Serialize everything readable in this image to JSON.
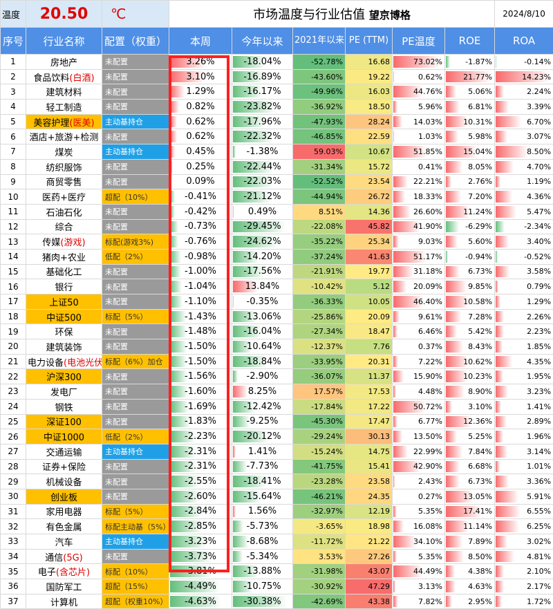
{
  "header": {
    "temp_label": "温度",
    "temp_value": "20.50",
    "temp_unit": "℃",
    "title": "市场温度与行业估值",
    "brand": "望京博格",
    "date": "2024/8/10"
  },
  "columns": [
    "序号",
    "行业名称",
    "配置（权重）",
    "本周",
    "今年以来",
    "2021年以来",
    "PE (TTM)",
    "PE温度",
    "ROE",
    "ROA"
  ],
  "rows": [
    {
      "idx": "1",
      "name": "房地产",
      "alloc": "未配置",
      "week": "3.26%",
      "ytd": "-18.04%",
      "since2021": "-52.78%",
      "pe": "16.68",
      "pe_temp": "73.02%",
      "roe": "-1.87%",
      "roa": "-0.14%"
    },
    {
      "idx": "2",
      "name": "食品饮料",
      "name_red": "(白酒)",
      "alloc": "未配置",
      "week": "3.10%",
      "ytd": "-16.89%",
      "since2021": "-43.60%",
      "pe": "19.22",
      "pe_temp": "0.62%",
      "roe": "21.77%",
      "roa": "14.23%"
    },
    {
      "idx": "3",
      "name": "建筑材料",
      "alloc": "未配置",
      "week": "1.29%",
      "ytd": "-16.17%",
      "since2021": "-49.96%",
      "pe": "16.03",
      "pe_temp": "44.76%",
      "roe": "5.06%",
      "roa": "2.24%"
    },
    {
      "idx": "4",
      "name": "轻工制造",
      "alloc": "未配置",
      "week": "0.82%",
      "ytd": "-23.82%",
      "since2021": "-36.92%",
      "pe": "18.50",
      "pe_temp": "5.96%",
      "roe": "6.81%",
      "roa": "3.39%"
    },
    {
      "idx": "5",
      "name": "美容护理",
      "name_red": "(医美)",
      "alloc": "主动基持仓",
      "week": "0.62%",
      "ytd": "-17.96%",
      "since2021": "-47.93%",
      "pe": "28.24",
      "pe_temp": "14.03%",
      "roe": "10.31%",
      "roa": "6.70%"
    },
    {
      "idx": "6",
      "name": "酒店+旅游+检测",
      "alloc": "未配置",
      "week": "0.62%",
      "ytd": "-22.32%",
      "since2021": "-46.85%",
      "pe": "22.59",
      "pe_temp": "1.03%",
      "roe": "5.98%",
      "roa": "3.07%"
    },
    {
      "idx": "7",
      "name": "煤炭",
      "alloc": "主动基持仓",
      "week": "0.45%",
      "ytd": "-1.38%",
      "since2021": "59.03%",
      "pe": "10.67",
      "pe_temp": "51.85%",
      "roe": "15.04%",
      "roa": "8.50%"
    },
    {
      "idx": "8",
      "name": "纺织服饰",
      "alloc": "未配置",
      "week": "0.25%",
      "ytd": "-22.44%",
      "since2021": "-31.34%",
      "pe": "15.72",
      "pe_temp": "0.41%",
      "roe": "8.05%",
      "roa": "4.70%"
    },
    {
      "idx": "9",
      "name": "商贸零售",
      "alloc": "未配置",
      "week": "0.09%",
      "ytd": "-22.03%",
      "since2021": "-52.52%",
      "pe": "23.54",
      "pe_temp": "22.21%",
      "roe": "2.76%",
      "roa": "1.19%"
    },
    {
      "idx": "10",
      "name": "医药+医疗",
      "alloc": "超配（10%）",
      "week": "-0.41%",
      "ytd": "-21.12%",
      "since2021": "-44.94%",
      "pe": "26.72",
      "pe_temp": "18.33%",
      "roe": "7.20%",
      "roa": "4.36%"
    },
    {
      "idx": "11",
      "name": "石油石化",
      "alloc": "未配置",
      "week": "-0.42%",
      "ytd": "0.49%",
      "since2021": "8.51%",
      "pe": "14.36",
      "pe_temp": "26.60%",
      "roe": "11.24%",
      "roa": "5.47%"
    },
    {
      "idx": "12",
      "name": "综合",
      "alloc": "未配置",
      "week": "-0.73%",
      "ytd": "-29.45%",
      "since2021": "-22.08%",
      "pe": "45.82",
      "pe_temp": "41.90%",
      "roe": "-6.29%",
      "roa": "-2.34%"
    },
    {
      "idx": "13",
      "name": "传媒",
      "name_red": "(游戏)",
      "alloc": "标配(游戏3%)",
      "week": "-0.76%",
      "ytd": "-24.62%",
      "since2021": "-35.22%",
      "pe": "25.34",
      "pe_temp": "9.03%",
      "roe": "5.60%",
      "roa": "3.40%"
    },
    {
      "idx": "14",
      "name": "猪肉+农业",
      "alloc": "低配（2%）",
      "week": "-0.98%",
      "ytd": "-14.20%",
      "since2021": "-37.24%",
      "pe": "41.63",
      "pe_temp": "51.17%",
      "roe": "-0.94%",
      "roa": "-0.52%"
    },
    {
      "idx": "15",
      "name": "基础化工",
      "alloc": "未配置",
      "week": "-1.00%",
      "ytd": "-17.56%",
      "since2021": "-21.91%",
      "pe": "19.77",
      "pe_temp": "31.18%",
      "roe": "6.73%",
      "roa": "3.58%"
    },
    {
      "idx": "16",
      "name": "银行",
      "alloc": "未配置",
      "week": "-1.04%",
      "ytd": "13.84%",
      "since2021": "-10.42%",
      "pe": "5.12",
      "pe_temp": "20.09%",
      "roe": "9.85%",
      "roa": "0.79%"
    },
    {
      "idx": "17",
      "name": "上证50",
      "alloc": "未配置",
      "week": "-1.10%",
      "ytd": "-0.35%",
      "since2021": "-36.33%",
      "pe": "10.05",
      "pe_temp": "46.40%",
      "roe": "10.58%",
      "roa": "1.29%"
    },
    {
      "idx": "18",
      "name": "中证500",
      "alloc": "标配（5%）",
      "week": "-1.43%",
      "ytd": "-13.06%",
      "since2021": "-25.86%",
      "pe": "20.09",
      "pe_temp": "9.61%",
      "roe": "7.28%",
      "roa": "2.26%"
    },
    {
      "idx": "19",
      "name": "环保",
      "alloc": "未配置",
      "week": "-1.48%",
      "ytd": "-16.04%",
      "since2021": "-27.34%",
      "pe": "18.47",
      "pe_temp": "6.46%",
      "roe": "5.42%",
      "roa": "2.23%"
    },
    {
      "idx": "20",
      "name": "建筑装饰",
      "alloc": "未配置",
      "week": "-1.50%",
      "ytd": "-10.64%",
      "since2021": "-12.37%",
      "pe": "7.76",
      "pe_temp": "0.37%",
      "roe": "8.43%",
      "roa": "1.85%"
    },
    {
      "idx": "21",
      "name": "电力设备",
      "name_red": "(电池光伏)",
      "alloc": "标配（6%）加仓",
      "week": "-1.50%",
      "ytd": "-18.84%",
      "since2021": "-33.95%",
      "pe": "20.31",
      "pe_temp": "7.22%",
      "roe": "10.62%",
      "roa": "4.35%"
    },
    {
      "idx": "22",
      "name": "沪深300",
      "alloc": "未配置",
      "week": "-1.56%",
      "ytd": "-2.90%",
      "since2021": "-36.07%",
      "pe": "11.37",
      "pe_temp": "15.90%",
      "roe": "10.23%",
      "roa": "1.95%"
    },
    {
      "idx": "23",
      "name": "发电厂",
      "alloc": "未配置",
      "week": "-1.60%",
      "ytd": "8.25%",
      "since2021": "17.57%",
      "pe": "17.53",
      "pe_temp": "4.48%",
      "roe": "8.90%",
      "roa": "3.23%"
    },
    {
      "idx": "24",
      "name": "钢铁",
      "alloc": "未配置",
      "week": "-1.69%",
      "ytd": "-12.42%",
      "since2021": "-17.84%",
      "pe": "17.22",
      "pe_temp": "50.72%",
      "roe": "3.10%",
      "roa": "1.41%"
    },
    {
      "idx": "25",
      "name": "深证100",
      "alloc": "未配置",
      "week": "-1.83%",
      "ytd": "-9.25%",
      "since2021": "-45.30%",
      "pe": "17.47",
      "pe_temp": "6.77%",
      "roe": "12.36%",
      "roa": "2.89%"
    },
    {
      "idx": "26",
      "name": "中证1000",
      "alloc": "低配（2%）",
      "week": "-2.23%",
      "ytd": "-20.12%",
      "since2021": "-29.24%",
      "pe": "30.13",
      "pe_temp": "13.50%",
      "roe": "5.25%",
      "roa": "1.96%"
    },
    {
      "idx": "27",
      "name": "交通运输",
      "alloc": "主动基持仓",
      "week": "-2.31%",
      "ytd": "1.41%",
      "since2021": "-15.24%",
      "pe": "14.75",
      "pe_temp": "22.99%",
      "roe": "7.84%",
      "roa": "3.14%"
    },
    {
      "idx": "28",
      "name": "证券+保险",
      "alloc": "未配置",
      "week": "-2.31%",
      "ytd": "-7.73%",
      "since2021": "-41.75%",
      "pe": "15.41",
      "pe_temp": "42.90%",
      "roe": "6.68%",
      "roa": "1.01%"
    },
    {
      "idx": "29",
      "name": "机械设备",
      "alloc": "未配置",
      "week": "-2.55%",
      "ytd": "-18.41%",
      "since2021": "-23.28%",
      "pe": "23.58",
      "pe_temp": "2.43%",
      "roe": "6.73%",
      "roa": "3.36%"
    },
    {
      "idx": "30",
      "name": "创业板",
      "alloc": "未配置",
      "week": "-2.60%",
      "ytd": "-15.64%",
      "since2021": "-46.21%",
      "pe": "24.35",
      "pe_temp": "0.27%",
      "roe": "13.05%",
      "roa": "5.91%"
    },
    {
      "idx": "31",
      "name": "家用电器",
      "alloc": "标配（5%）",
      "week": "-2.84%",
      "ytd": "1.56%",
      "since2021": "-32.97%",
      "pe": "12.19",
      "pe_temp": "5.35%",
      "roe": "17.41%",
      "roa": "6.55%"
    },
    {
      "idx": "32",
      "name": "有色金属",
      "alloc": "标配主动基（5%）",
      "week": "-2.85%",
      "ytd": "-5.73%",
      "since2021": "-3.65%",
      "pe": "18.98",
      "pe_temp": "16.08%",
      "roe": "11.14%",
      "roa": "6.25%"
    },
    {
      "idx": "33",
      "name": "汽车",
      "alloc": "主动基持仓",
      "week": "-3.23%",
      "ytd": "-8.68%",
      "since2021": "-11.72%",
      "pe": "21.22",
      "pe_temp": "34.10%",
      "roe": "7.89%",
      "roa": "3.02%"
    },
    {
      "idx": "34",
      "name": "通信",
      "name_red": "(5G)",
      "alloc": "未配置",
      "week": "-3.73%",
      "ytd": "-5.34%",
      "since2021": "3.53%",
      "pe": "27.26",
      "pe_temp": "5.35%",
      "roe": "8.50%",
      "roa": "4.81%"
    },
    {
      "idx": "35",
      "name": "电子",
      "name_red": "(含芯片)",
      "alloc": "标配（10%）",
      "week": "-3.81%",
      "ytd": "-13.88%",
      "since2021": "-31.98%",
      "pe": "43.07",
      "pe_temp": "44.49%",
      "roe": "4.38%",
      "roa": "2.10%"
    },
    {
      "idx": "36",
      "name": "国防军工",
      "alloc": "超配（15%）",
      "week": "-4.49%",
      "ytd": "-10.75%",
      "since2021": "-30.92%",
      "pe": "47.29",
      "pe_temp": "3.13%",
      "roe": "4.63%",
      "roa": "2.17%"
    },
    {
      "idx": "37",
      "name": "计算机",
      "alloc": "超配（权重10%）",
      "week": "-4.63%",
      "ytd": "-30.38%",
      "since2021": "-42.69%",
      "pe": "43.38",
      "pe_temp": "7.82%",
      "roe": "2.95%",
      "roa": "1.72%"
    }
  ],
  "colors": {
    "header_bg": "#4f8fe6",
    "highlight_name": "#ffc000",
    "alloc_none": "#9a9a9a",
    "alloc_fund": "#1fa0e6",
    "alloc_weight": "#ffc000",
    "bar_green": "#63be7b",
    "bar_red": "#f8696b",
    "redbox": "#ff1f1f"
  }
}
